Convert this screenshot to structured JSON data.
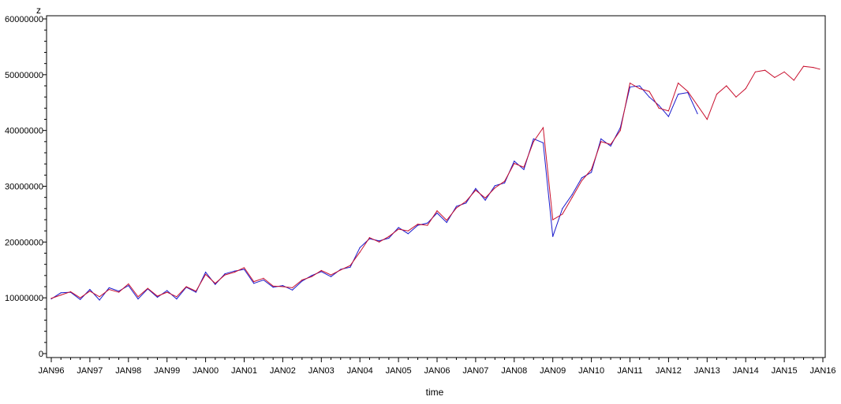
{
  "chart_data": {
    "type": "line",
    "ylabel": "z",
    "xlabel": "time",
    "ylim": [
      0,
      60000000
    ],
    "xlim": [
      "1996-01",
      "2016-01"
    ],
    "yticks": [
      "0",
      "10000000",
      "20000000",
      "30000000",
      "40000000",
      "50000000",
      "60000000"
    ],
    "ytick_values": [
      0,
      10000000,
      20000000,
      30000000,
      40000000,
      50000000,
      60000000
    ],
    "xticks": [
      "JAN96",
      "JAN97",
      "JAN98",
      "JAN99",
      "JAN00",
      "JAN01",
      "JAN02",
      "JAN03",
      "JAN04",
      "JAN05",
      "JAN06",
      "JAN07",
      "JAN08",
      "JAN09",
      "JAN10",
      "JAN11",
      "JAN12",
      "JAN13",
      "JAN14",
      "JAN15",
      "JAN16"
    ],
    "grid": false,
    "legend": "none",
    "series": [
      {
        "color": "#1a1acc",
        "x": [
          "1996-01",
          "1996-04",
          "1996-07",
          "1996-10",
          "1997-01",
          "1997-04",
          "1997-07",
          "1997-10",
          "1998-01",
          "1998-04",
          "1998-07",
          "1998-10",
          "1999-01",
          "1999-04",
          "1999-07",
          "1999-10",
          "2000-01",
          "2000-04",
          "2000-07",
          "2000-10",
          "2001-01",
          "2001-04",
          "2001-07",
          "2001-10",
          "2002-01",
          "2002-04",
          "2002-07",
          "2002-10",
          "2003-01",
          "2003-04",
          "2003-07",
          "2003-10",
          "2004-01",
          "2004-04",
          "2004-07",
          "2004-10",
          "2005-01",
          "2005-04",
          "2005-07",
          "2005-10",
          "2006-01",
          "2006-04",
          "2006-07",
          "2006-10",
          "2007-01",
          "2007-04",
          "2007-07",
          "2007-10",
          "2008-01",
          "2008-04",
          "2008-07",
          "2008-10",
          "2009-01",
          "2009-04",
          "2009-07",
          "2009-10",
          "2010-01",
          "2010-04",
          "2010-07",
          "2010-10",
          "2011-01",
          "2011-04",
          "2011-07",
          "2011-10",
          "2012-01",
          "2012-04",
          "2012-07",
          "2012-10"
        ],
        "y": [
          9800000,
          10900000,
          11000000,
          9700000,
          11500000,
          9600000,
          11800000,
          11200000,
          12200000,
          9800000,
          11600000,
          10100000,
          11300000,
          9800000,
          11900000,
          11000000,
          14600000,
          12400000,
          14300000,
          14800000,
          15100000,
          12600000,
          13200000,
          11900000,
          12200000,
          11400000,
          13000000,
          14000000,
          14700000,
          13800000,
          15100000,
          15500000,
          19000000,
          20600000,
          20200000,
          20700000,
          22600000,
          21500000,
          23000000,
          23400000,
          25200000,
          23500000,
          26400000,
          27000000,
          29600000,
          27500000,
          30100000,
          30600000,
          34500000,
          33000000,
          38500000,
          37800000,
          21000000,
          26000000,
          28500000,
          31500000,
          32500000,
          38500000,
          37200000,
          40500000,
          47800000,
          48000000,
          46000000,
          44500000,
          42500000,
          46500000,
          46800000,
          43000000
        ]
      },
      {
        "color": "#c8102e",
        "x": [
          "1996-01",
          "1996-04",
          "1996-07",
          "1996-10",
          "1997-01",
          "1997-04",
          "1997-07",
          "1997-10",
          "1998-01",
          "1998-04",
          "1998-07",
          "1998-10",
          "1999-01",
          "1999-04",
          "1999-07",
          "1999-10",
          "2000-01",
          "2000-04",
          "2000-07",
          "2000-10",
          "2001-01",
          "2001-04",
          "2001-07",
          "2001-10",
          "2002-01",
          "2002-04",
          "2002-07",
          "2002-10",
          "2003-01",
          "2003-04",
          "2003-07",
          "2003-10",
          "2004-01",
          "2004-04",
          "2004-07",
          "2004-10",
          "2005-01",
          "2005-04",
          "2005-07",
          "2005-10",
          "2006-01",
          "2006-04",
          "2006-07",
          "2006-10",
          "2007-01",
          "2007-04",
          "2007-07",
          "2007-10",
          "2008-01",
          "2008-04",
          "2008-07",
          "2008-10",
          "2009-01",
          "2009-04",
          "2009-07",
          "2009-10",
          "2010-01",
          "2010-04",
          "2010-07",
          "2010-10",
          "2011-01",
          "2011-04",
          "2011-07",
          "2011-10",
          "2012-01",
          "2012-04",
          "2012-07",
          "2012-10",
          "2013-01",
          "2013-04",
          "2013-07",
          "2013-10",
          "2014-01",
          "2014-04",
          "2014-07",
          "2014-10",
          "2015-01",
          "2015-04",
          "2015-07",
          "2015-10",
          "2015-12"
        ],
        "y": [
          9900000,
          10500000,
          11100000,
          10000000,
          11200000,
          10200000,
          11500000,
          11000000,
          12500000,
          10200000,
          11700000,
          10300000,
          11000000,
          10200000,
          12000000,
          11200000,
          14200000,
          12600000,
          14100000,
          14600000,
          15400000,
          12900000,
          13500000,
          12100000,
          12000000,
          11800000,
          13200000,
          13800000,
          14900000,
          14100000,
          15000000,
          15800000,
          18200000,
          20800000,
          20000000,
          21000000,
          22300000,
          22000000,
          23200000,
          23000000,
          25600000,
          23900000,
          26100000,
          27300000,
          29300000,
          27900000,
          29700000,
          30900000,
          34100000,
          33400000,
          38000000,
          40500000,
          24000000,
          25000000,
          28000000,
          31000000,
          33000000,
          38000000,
          37500000,
          40000000,
          48500000,
          47500000,
          47000000,
          44000000,
          43500000,
          48500000,
          47000000,
          44500000,
          42000000,
          46500000,
          48000000,
          46000000,
          47500000,
          50500000,
          50800000,
          49500000,
          50500000,
          49000000,
          51500000,
          51300000,
          51000000
        ]
      }
    ]
  }
}
